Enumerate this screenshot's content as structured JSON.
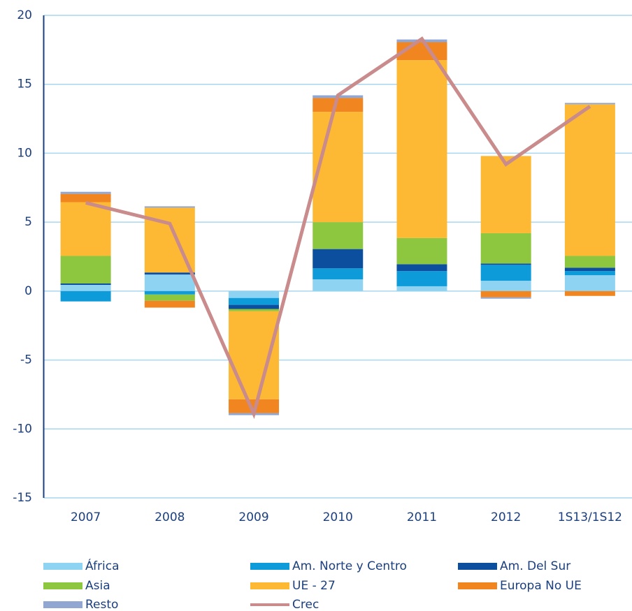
{
  "chart_data": {
    "type": "bar",
    "stacked": true,
    "categories": [
      "2007",
      "2008",
      "2009",
      "2010",
      "2011",
      "2012",
      "1S13/1S12"
    ],
    "ylim": [
      -15,
      20
    ],
    "yticks": [
      -15,
      -10,
      -5,
      0,
      5,
      10,
      15,
      20
    ],
    "grid": true,
    "series": [
      {
        "name": "África",
        "color": "#8fd3f2",
        "values": [
          0.45,
          1.2,
          -0.5,
          0.85,
          0.35,
          0.75,
          1.15
        ]
      },
      {
        "name": "Am. Norte y Centro",
        "color": "#0e9bd9",
        "values": [
          -0.75,
          -0.25,
          -0.5,
          0.8,
          1.1,
          1.15,
          0.3
        ]
      },
      {
        "name": "Am. Del Sur",
        "color": "#0c4f9e",
        "values": [
          0.1,
          0.15,
          -0.3,
          1.4,
          0.5,
          0.1,
          0.25
        ]
      },
      {
        "name": "Asia",
        "color": "#8dc63f",
        "values": [
          2.0,
          -0.45,
          -0.15,
          1.95,
          1.9,
          2.2,
          0.85
        ]
      },
      {
        "name": "UE - 27",
        "color": "#fdb933",
        "values": [
          3.9,
          4.7,
          -6.4,
          8.0,
          12.9,
          5.6,
          11.0
        ]
      },
      {
        "name": "Europa No UE",
        "color": "#f1851f",
        "values": [
          0.6,
          -0.5,
          -1.0,
          1.0,
          1.3,
          -0.45,
          -0.35
        ]
      },
      {
        "name": "Resto",
        "color": "#91a6d0",
        "values": [
          0.15,
          0.1,
          -0.15,
          0.2,
          0.2,
          -0.1,
          0.1
        ]
      },
      {
        "name": "Crec",
        "color": "#c98b8b",
        "type": "line",
        "values": [
          6.4,
          4.9,
          -8.9,
          14.2,
          18.3,
          9.2,
          13.4
        ]
      }
    ]
  }
}
